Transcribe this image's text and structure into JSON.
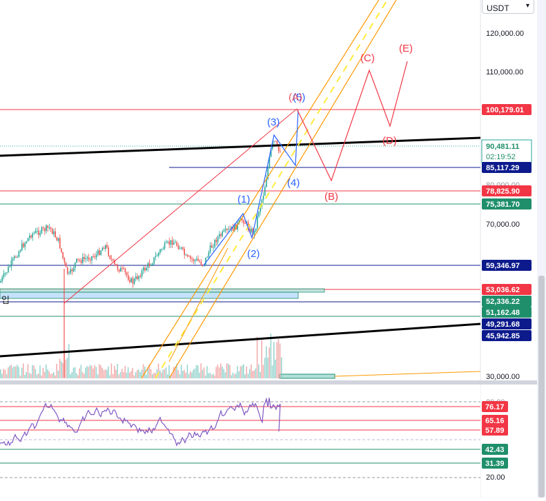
{
  "currency": {
    "selected": "USDT"
  },
  "price_axis": {
    "labels": [
      "120,000.00",
      "110,000.00",
      "70,000.00",
      "30,000.00"
    ],
    "hidden_label": "80,000.00"
  },
  "current_price": {
    "value": "90,481.11",
    "countdown": "02:19:52",
    "color": "#26a69a"
  },
  "price_tags": [
    {
      "name": "price-tag-100179",
      "text": "100,179.01",
      "color": "#f23645",
      "value": 100179.01
    },
    {
      "name": "price-tag-85117",
      "text": "85,117.29",
      "color": "#0c1a8c",
      "value": 85117.29
    },
    {
      "name": "price-tag-78825",
      "text": "78,825.90",
      "color": "#f23645",
      "value": 78825.9
    },
    {
      "name": "price-tag-75381",
      "text": "75,381.70",
      "color": "#1f8f6b",
      "value": 75381.7
    },
    {
      "name": "price-tag-59346",
      "text": "59,346.97",
      "color": "#0c1a8c",
      "value": 59346.97
    },
    {
      "name": "price-tag-53036",
      "text": "53,036.62",
      "color": "#f23645",
      "value": 53036.62
    },
    {
      "name": "price-tag-52336",
      "text": "52,336.22",
      "color": "#1f8f6b",
      "value": 52336.22
    },
    {
      "name": "price-tag-51162",
      "text": "51,162.48",
      "color": "#1f8f6b",
      "value": 51162.48
    },
    {
      "name": "price-tag-49291",
      "text": "49,291.68",
      "color": "#0c1a8c",
      "value": 49291.68
    },
    {
      "name": "price-tag-45942",
      "text": "45,942.85",
      "color": "#0c1a8c",
      "value": 45942.85
    }
  ],
  "wave_labels": {
    "impulse": [
      "(1)",
      "(2)",
      "(3)",
      "(4)",
      "(5)"
    ],
    "corrective": [
      "(A)",
      "(B)",
      "(C)",
      "(D)",
      "(E)"
    ]
  },
  "side_text": "입",
  "rsi": {
    "axis_labels": [
      "80.00",
      "20.00"
    ],
    "tags": [
      {
        "name": "rsi-tag-76",
        "text": "76.17",
        "color": "#f23645"
      },
      {
        "name": "rsi-tag-65",
        "text": "65.16",
        "color": "#f23645"
      },
      {
        "name": "rsi-tag-57",
        "text": "57.89",
        "color": "#f23645"
      },
      {
        "name": "rsi-tag-42",
        "text": "42.43",
        "color": "#1f8f6b"
      },
      {
        "name": "rsi-tag-31",
        "text": "31.39",
        "color": "#1f8f6b"
      }
    ],
    "line_color": "#7e57c2"
  },
  "colors": {
    "up": "#26a69a",
    "down": "#ef5350",
    "wave_blue": "#2962ff",
    "wave_red": "#f23645",
    "channel": "#ff9800",
    "midline": "#ffeb3b"
  }
}
